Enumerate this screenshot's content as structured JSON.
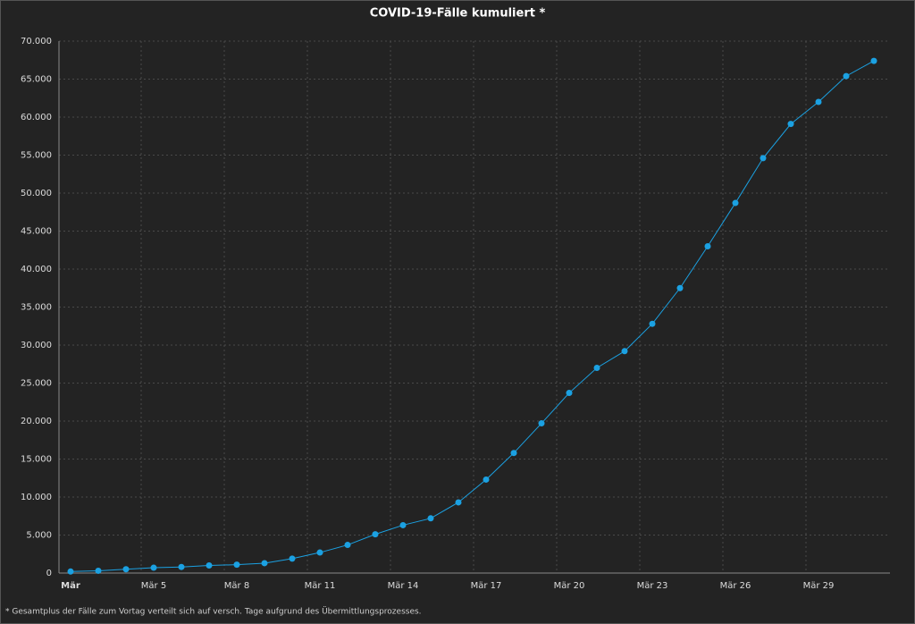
{
  "chart_data": {
    "type": "line",
    "title": "COVID-19-Fälle kumuliert *",
    "footnote": "* Gesamtplus der Fälle zum Vortag verteilt sich auf versch. Tage aufgrund des Übermittlungsprozesses.",
    "categories": [
      "Mär",
      null,
      null,
      "Mär 5",
      null,
      null,
      "Mär 8",
      null,
      null,
      "Mär 11",
      null,
      null,
      "Mär 14",
      null,
      null,
      "Mär 17",
      null,
      null,
      "Mär 20",
      null,
      null,
      "Mär 23",
      null,
      null,
      "Mär 26",
      null,
      null,
      "Mär 29",
      null,
      null
    ],
    "values": [
      200,
      300,
      500,
      700,
      800,
      1000,
      1100,
      1300,
      1900,
      2700,
      3700,
      5100,
      6300,
      7200,
      9300,
      12300,
      15800,
      19700,
      23700,
      27000,
      29200,
      32800,
      37500,
      43000,
      48700,
      54600,
      59100,
      62000,
      65400,
      67400
    ],
    "color": "#1ba1e2",
    "ylim": [
      0,
      70000
    ],
    "yticks": [
      0,
      {
        "value": 5000,
        "label": "5.000"
      },
      {
        "value": 10000,
        "label": "10.000"
      },
      {
        "value": 15000,
        "label": "15.000"
      },
      {
        "value": 20000,
        "label": "20.000"
      },
      {
        "value": 25000,
        "label": "25.000"
      },
      {
        "value": 30000,
        "label": "30.000"
      },
      {
        "value": 35000,
        "label": "35.000"
      },
      {
        "value": 40000,
        "label": "40.000"
      },
      {
        "value": 45000,
        "label": "45.000"
      },
      {
        "value": 50000,
        "label": "50.000"
      },
      {
        "value": 55000,
        "label": "55.000"
      },
      {
        "value": 60000,
        "label": "60.000"
      },
      {
        "value": 65000,
        "label": "65.000"
      },
      {
        "value": 70000,
        "label": "70.000"
      }
    ],
    "grid": true
  }
}
